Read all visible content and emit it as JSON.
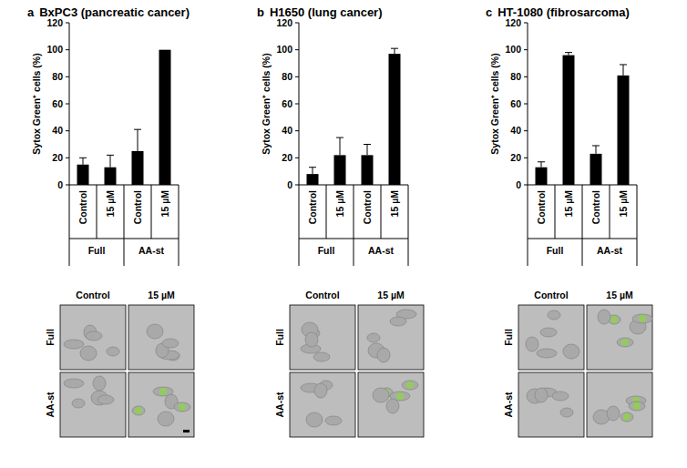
{
  "chart_data": [
    {
      "type": "bar",
      "panel": "a",
      "title": "BxPC3 (pancreatic cancer)",
      "y_label": "Sytox Green⁺ cells (%)",
      "categories": [
        "Control",
        "15 µM",
        "Control",
        "15 µM"
      ],
      "groups": [
        "Full",
        "AA-st"
      ],
      "values": [
        15,
        13,
        25,
        100
      ],
      "errors": [
        5,
        9,
        16,
        0
      ],
      "color": "#000000",
      "ylim": [
        0,
        120
      ],
      "yticks": [
        0,
        20,
        40,
        60,
        80,
        100,
        120
      ],
      "image_columns": [
        "Control",
        "15 µM"
      ],
      "image_rows": [
        "Full",
        "AA-st"
      ]
    },
    {
      "type": "bar",
      "panel": "b",
      "title": "H1650 (lung cancer)",
      "y_label": "Sytox Green⁺ cells (%)",
      "categories": [
        "Control",
        "15 µM",
        "Control",
        "15 µM"
      ],
      "groups": [
        "Full",
        "AA-st"
      ],
      "values": [
        8,
        22,
        22,
        97
      ],
      "errors": [
        5,
        13,
        8,
        4
      ],
      "color": "#000000",
      "ylim": [
        0,
        120
      ],
      "yticks": [
        0,
        20,
        40,
        60,
        80,
        100,
        120
      ],
      "image_columns": [
        "Control",
        "15 µM"
      ],
      "image_rows": [
        "Full",
        "AA-st"
      ]
    },
    {
      "type": "bar",
      "panel": "c",
      "title": "HT-1080 (fibrosarcoma)",
      "y_label": "Sytox Green⁺ cells (%)",
      "categories": [
        "Control",
        "15 µM",
        "Control",
        "15 µM"
      ],
      "groups": [
        "Full",
        "AA-st"
      ],
      "values": [
        13,
        96,
        23,
        81
      ],
      "errors": [
        4,
        2,
        6,
        8
      ],
      "color": "#000000",
      "ylim": [
        0,
        120
      ],
      "yticks": [
        0,
        20,
        40,
        60,
        80,
        100,
        120
      ],
      "image_columns": [
        "Control",
        "15 µM"
      ],
      "image_rows": [
        "Full",
        "AA-st"
      ]
    }
  ]
}
